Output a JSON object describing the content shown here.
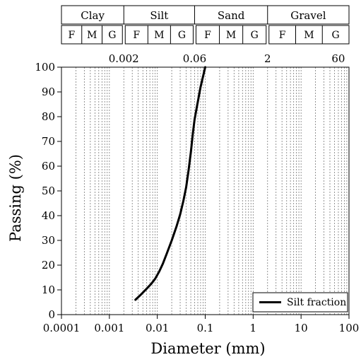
{
  "classification": {
    "groups": [
      {
        "name": "Clay",
        "subs": [
          "F",
          "M",
          "G"
        ]
      },
      {
        "name": "Silt",
        "subs": [
          "F",
          "M",
          "G"
        ]
      },
      {
        "name": "Sand",
        "subs": [
          "F",
          "M",
          "G"
        ]
      },
      {
        "name": "Gravel",
        "subs": [
          "F",
          "M",
          "G"
        ]
      }
    ],
    "boundaries_mm": [
      0.002,
      0.06,
      2,
      60
    ]
  },
  "chart_data": {
    "type": "line",
    "xlabel": "Diameter (mm)",
    "ylabel": "Passing (%)",
    "xscale": "log",
    "xlim": [
      0.0001,
      100
    ],
    "ylim": [
      0,
      100
    ],
    "x_ticks": [
      0.0001,
      0.001,
      0.01,
      0.1,
      1,
      10,
      100
    ],
    "x_tick_labels": [
      "0.0001",
      "0.001",
      "0.01",
      "0.1",
      "1",
      "10",
      "100"
    ],
    "y_ticks": [
      0,
      10,
      20,
      30,
      40,
      50,
      60,
      70,
      80,
      90,
      100
    ],
    "y_tick_labels": [
      "0",
      "10",
      "20",
      "30",
      "40",
      "50",
      "60",
      "70",
      "80",
      "90",
      "100"
    ],
    "top_ticks": [
      0.002,
      0.06,
      2,
      60
    ],
    "top_tick_labels": [
      "0.002",
      "0.06",
      "2",
      "60"
    ],
    "grid": "vertical dashed minor log grid",
    "legend": {
      "position": "bottom-right",
      "entries": [
        "Silt fraction"
      ]
    },
    "series": [
      {
        "name": "Silt fraction",
        "color": "#000000",
        "x": [
          0.0035,
          0.0045,
          0.006,
          0.0075,
          0.009,
          0.011,
          0.013,
          0.016,
          0.02,
          0.025,
          0.03,
          0.035,
          0.04,
          0.045,
          0.05,
          0.055,
          0.06,
          0.07,
          0.08,
          0.1
        ],
        "y": [
          6,
          8,
          10.5,
          12.5,
          14.5,
          17.5,
          20.5,
          25,
          30,
          35.5,
          40.5,
          46,
          51.5,
          58.5,
          65.5,
          73,
          79,
          86,
          92,
          100
        ]
      }
    ]
  }
}
